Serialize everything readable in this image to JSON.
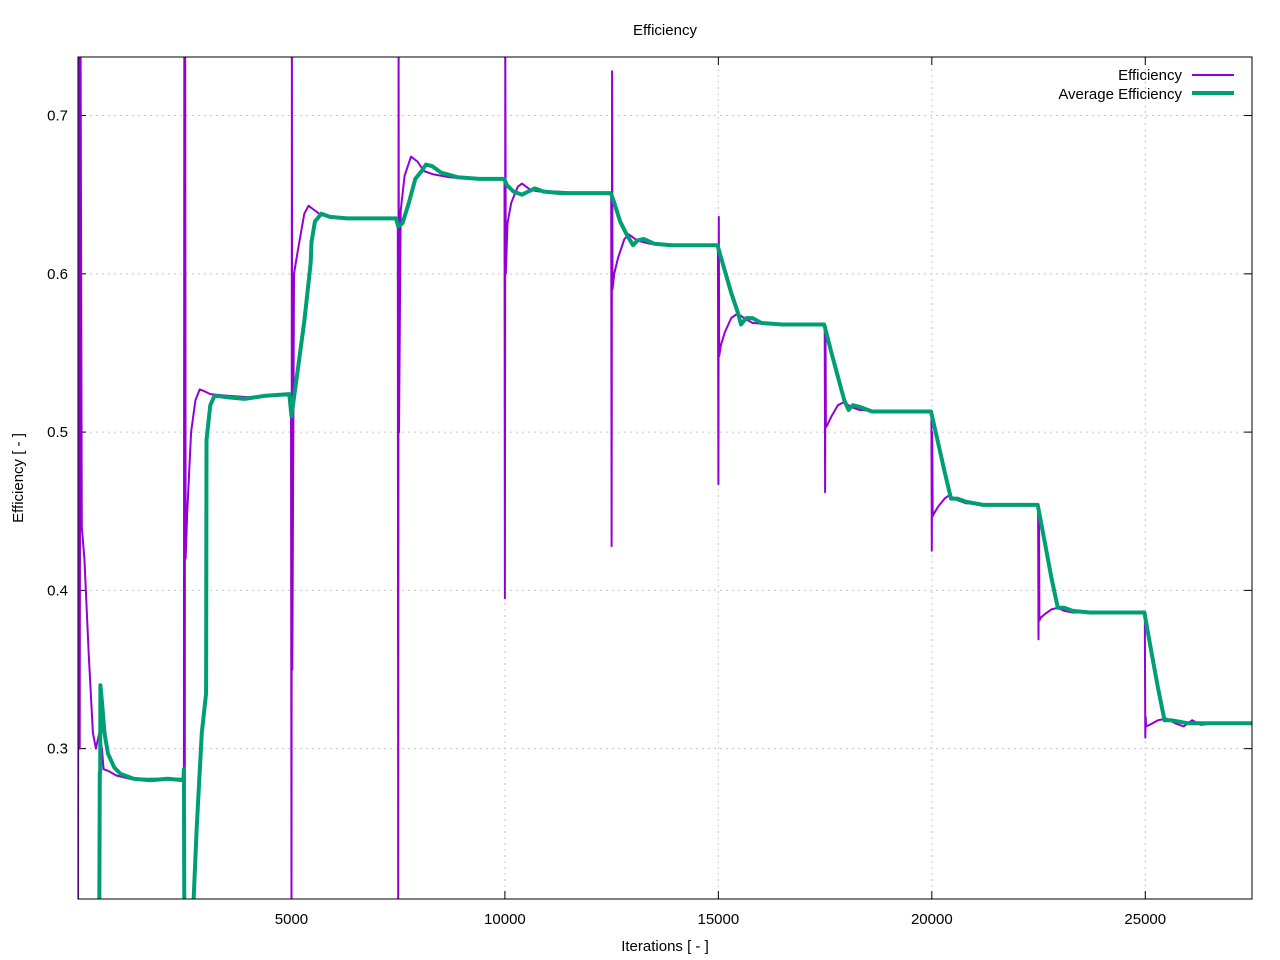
{
  "chart_data": {
    "type": "line",
    "title": "Efficiency",
    "xlabel": "Iterations [ - ]",
    "ylabel": "Efficiency [ - ]",
    "xlim": [
      0,
      27500
    ],
    "ylim": [
      0.205,
      0.737
    ],
    "xticks": [
      5000,
      10000,
      15000,
      20000,
      25000
    ],
    "yticks": [
      0.3,
      0.4,
      0.5,
      0.6,
      0.7
    ],
    "xtick_labels": [
      "5000",
      "10000",
      "15000",
      "20000",
      "25000"
    ],
    "ytick_labels": [
      "0.3",
      "0.4",
      "0.5",
      "0.6",
      "0.7"
    ],
    "grid": true,
    "legend_position": "top-right",
    "series": [
      {
        "name": "Efficiency",
        "color": "#9400d3",
        "points": [
          [
            0,
            0.2
          ],
          [
            20,
            0.74
          ],
          [
            40,
            0.3
          ],
          [
            60,
            0.74
          ],
          [
            90,
            0.44
          ],
          [
            150,
            0.42
          ],
          [
            250,
            0.36
          ],
          [
            350,
            0.31
          ],
          [
            420,
            0.3
          ],
          [
            500,
            0.31
          ],
          [
            560,
            0.3
          ],
          [
            600,
            0.287
          ],
          [
            700,
            0.286
          ],
          [
            900,
            0.283
          ],
          [
            1200,
            0.281
          ],
          [
            1600,
            0.281
          ],
          [
            2000,
            0.281
          ],
          [
            2400,
            0.281
          ],
          [
            2480,
            0.281
          ],
          [
            2490,
            0.74
          ],
          [
            2500,
            0.2
          ],
          [
            2510,
            0.74
          ],
          [
            2520,
            0.42
          ],
          [
            2560,
            0.45
          ],
          [
            2650,
            0.5
          ],
          [
            2750,
            0.52
          ],
          [
            2850,
            0.527
          ],
          [
            2950,
            0.526
          ],
          [
            3100,
            0.524
          ],
          [
            3500,
            0.523
          ],
          [
            4000,
            0.522
          ],
          [
            4500,
            0.523
          ],
          [
            4950,
            0.524
          ],
          [
            4990,
            0.524
          ],
          [
            5000,
            0.2
          ],
          [
            5010,
            0.74
          ],
          [
            5020,
            0.35
          ],
          [
            5060,
            0.6
          ],
          [
            5150,
            0.615
          ],
          [
            5300,
            0.638
          ],
          [
            5400,
            0.643
          ],
          [
            5550,
            0.64
          ],
          [
            5700,
            0.637
          ],
          [
            6000,
            0.636
          ],
          [
            6500,
            0.635
          ],
          [
            7000,
            0.635
          ],
          [
            7450,
            0.635
          ],
          [
            7490,
            0.635
          ],
          [
            7500,
            0.2
          ],
          [
            7510,
            0.74
          ],
          [
            7520,
            0.5
          ],
          [
            7560,
            0.64
          ],
          [
            7650,
            0.662
          ],
          [
            7800,
            0.674
          ],
          [
            7950,
            0.671
          ],
          [
            8100,
            0.665
          ],
          [
            8300,
            0.663
          ],
          [
            8700,
            0.661
          ],
          [
            9200,
            0.66
          ],
          [
            9600,
            0.66
          ],
          [
            9950,
            0.66
          ],
          [
            9990,
            0.66
          ],
          [
            10000,
            0.395
          ],
          [
            10010,
            0.74
          ],
          [
            10020,
            0.6
          ],
          [
            10060,
            0.632
          ],
          [
            10150,
            0.645
          ],
          [
            10300,
            0.655
          ],
          [
            10400,
            0.657
          ],
          [
            10600,
            0.653
          ],
          [
            10800,
            0.652
          ],
          [
            11200,
            0.652
          ],
          [
            11800,
            0.651
          ],
          [
            12450,
            0.651
          ],
          [
            12490,
            0.651
          ],
          [
            12500,
            0.428
          ],
          [
            12510,
            0.728
          ],
          [
            12520,
            0.59
          ],
          [
            12560,
            0.6
          ],
          [
            12650,
            0.61
          ],
          [
            12800,
            0.622
          ],
          [
            12900,
            0.625
          ],
          [
            13100,
            0.621
          ],
          [
            13400,
            0.619
          ],
          [
            13800,
            0.618
          ],
          [
            14400,
            0.618
          ],
          [
            14950,
            0.618
          ],
          [
            14990,
            0.618
          ],
          [
            15000,
            0.467
          ],
          [
            15010,
            0.636
          ],
          [
            15020,
            0.548
          ],
          [
            15060,
            0.555
          ],
          [
            15150,
            0.563
          ],
          [
            15300,
            0.572
          ],
          [
            15450,
            0.575
          ],
          [
            15600,
            0.572
          ],
          [
            15800,
            0.569
          ],
          [
            16200,
            0.568
          ],
          [
            16800,
            0.568
          ],
          [
            17450,
            0.568
          ],
          [
            17490,
            0.568
          ],
          [
            17500,
            0.462
          ],
          [
            17510,
            0.565
          ],
          [
            17520,
            0.503
          ],
          [
            17560,
            0.505
          ],
          [
            17650,
            0.51
          ],
          [
            17800,
            0.517
          ],
          [
            17950,
            0.519
          ],
          [
            18100,
            0.516
          ],
          [
            18300,
            0.514
          ],
          [
            18800,
            0.513
          ],
          [
            19400,
            0.513
          ],
          [
            19950,
            0.513
          ],
          [
            19990,
            0.513
          ],
          [
            20000,
            0.425
          ],
          [
            20010,
            0.5
          ],
          [
            20020,
            0.447
          ],
          [
            20060,
            0.449
          ],
          [
            20150,
            0.453
          ],
          [
            20300,
            0.458
          ],
          [
            20400,
            0.46
          ],
          [
            20600,
            0.457
          ],
          [
            20800,
            0.455
          ],
          [
            21300,
            0.454
          ],
          [
            21900,
            0.454
          ],
          [
            22450,
            0.454
          ],
          [
            22490,
            0.454
          ],
          [
            22500,
            0.369
          ],
          [
            22510,
            0.45
          ],
          [
            22520,
            0.381
          ],
          [
            22560,
            0.383
          ],
          [
            22650,
            0.385
          ],
          [
            22800,
            0.388
          ],
          [
            22950,
            0.389
          ],
          [
            23100,
            0.387
          ],
          [
            23300,
            0.386
          ],
          [
            23800,
            0.386
          ],
          [
            24400,
            0.386
          ],
          [
            24950,
            0.386
          ],
          [
            24990,
            0.386
          ],
          [
            25000,
            0.307
          ],
          [
            25010,
            0.32
          ],
          [
            25020,
            0.314
          ],
          [
            25100,
            0.315
          ],
          [
            25300,
            0.318
          ],
          [
            25500,
            0.319
          ],
          [
            25700,
            0.316
          ],
          [
            25900,
            0.314
          ],
          [
            26100,
            0.318
          ],
          [
            26300,
            0.315
          ],
          [
            26600,
            0.316
          ],
          [
            27000,
            0.316
          ],
          [
            27500,
            0.316
          ]
        ]
      },
      {
        "name": "Average Efficiency",
        "color": "#009e73",
        "points": [
          [
            500,
            0.2
          ],
          [
            510,
            0.285
          ],
          [
            520,
            0.285
          ],
          [
            525,
            0.34
          ],
          [
            560,
            0.33
          ],
          [
            620,
            0.31
          ],
          [
            700,
            0.297
          ],
          [
            850,
            0.288
          ],
          [
            1000,
            0.284
          ],
          [
            1300,
            0.281
          ],
          [
            1700,
            0.28
          ],
          [
            2100,
            0.281
          ],
          [
            2470,
            0.28
          ],
          [
            2480,
            0.287
          ],
          [
            2490,
            0.2
          ],
          [
            2700,
            0.2
          ],
          [
            2780,
            0.25
          ],
          [
            2900,
            0.31
          ],
          [
            3000,
            0.335
          ],
          [
            3010,
            0.495
          ],
          [
            3100,
            0.517
          ],
          [
            3200,
            0.523
          ],
          [
            3500,
            0.522
          ],
          [
            3900,
            0.521
          ],
          [
            4400,
            0.523
          ],
          [
            4950,
            0.524
          ],
          [
            5000,
            0.51
          ],
          [
            5050,
            0.52
          ],
          [
            5150,
            0.54
          ],
          [
            5300,
            0.57
          ],
          [
            5450,
            0.607
          ],
          [
            5470,
            0.62
          ],
          [
            5550,
            0.633
          ],
          [
            5700,
            0.638
          ],
          [
            5900,
            0.636
          ],
          [
            6300,
            0.635
          ],
          [
            6800,
            0.635
          ],
          [
            7450,
            0.635
          ],
          [
            7500,
            0.63
          ],
          [
            7600,
            0.632
          ],
          [
            7750,
            0.645
          ],
          [
            7900,
            0.66
          ],
          [
            8050,
            0.665
          ],
          [
            8150,
            0.669
          ],
          [
            8300,
            0.668
          ],
          [
            8500,
            0.664
          ],
          [
            8900,
            0.661
          ],
          [
            9400,
            0.66
          ],
          [
            9980,
            0.66
          ],
          [
            10050,
            0.656
          ],
          [
            10200,
            0.652
          ],
          [
            10400,
            0.65
          ],
          [
            10550,
            0.652
          ],
          [
            10700,
            0.654
          ],
          [
            10900,
            0.652
          ],
          [
            11300,
            0.651
          ],
          [
            11900,
            0.651
          ],
          [
            12480,
            0.651
          ],
          [
            12560,
            0.645
          ],
          [
            12700,
            0.633
          ],
          [
            12850,
            0.625
          ],
          [
            13000,
            0.618
          ],
          [
            13100,
            0.621
          ],
          [
            13250,
            0.622
          ],
          [
            13500,
            0.619
          ],
          [
            13900,
            0.618
          ],
          [
            14400,
            0.618
          ],
          [
            14980,
            0.618
          ],
          [
            15150,
            0.602
          ],
          [
            15300,
            0.588
          ],
          [
            15450,
            0.576
          ],
          [
            15530,
            0.568
          ],
          [
            15650,
            0.572
          ],
          [
            15800,
            0.572
          ],
          [
            16000,
            0.569
          ],
          [
            16500,
            0.568
          ],
          [
            17000,
            0.568
          ],
          [
            17480,
            0.568
          ],
          [
            17650,
            0.55
          ],
          [
            17800,
            0.535
          ],
          [
            17950,
            0.52
          ],
          [
            18050,
            0.514
          ],
          [
            18150,
            0.517
          ],
          [
            18300,
            0.516
          ],
          [
            18600,
            0.513
          ],
          [
            19200,
            0.513
          ],
          [
            19980,
            0.513
          ],
          [
            20150,
            0.493
          ],
          [
            20300,
            0.475
          ],
          [
            20450,
            0.458
          ],
          [
            20600,
            0.458
          ],
          [
            20800,
            0.456
          ],
          [
            21200,
            0.454
          ],
          [
            21800,
            0.454
          ],
          [
            22480,
            0.454
          ],
          [
            22650,
            0.43
          ],
          [
            22800,
            0.408
          ],
          [
            22950,
            0.389
          ],
          [
            23100,
            0.389
          ],
          [
            23300,
            0.387
          ],
          [
            23700,
            0.386
          ],
          [
            24300,
            0.386
          ],
          [
            24980,
            0.386
          ],
          [
            25150,
            0.36
          ],
          [
            25300,
            0.338
          ],
          [
            25450,
            0.318
          ],
          [
            25600,
            0.318
          ],
          [
            25800,
            0.317
          ],
          [
            26000,
            0.316
          ],
          [
            26500,
            0.316
          ],
          [
            27000,
            0.316
          ],
          [
            27500,
            0.316
          ]
        ]
      }
    ]
  }
}
